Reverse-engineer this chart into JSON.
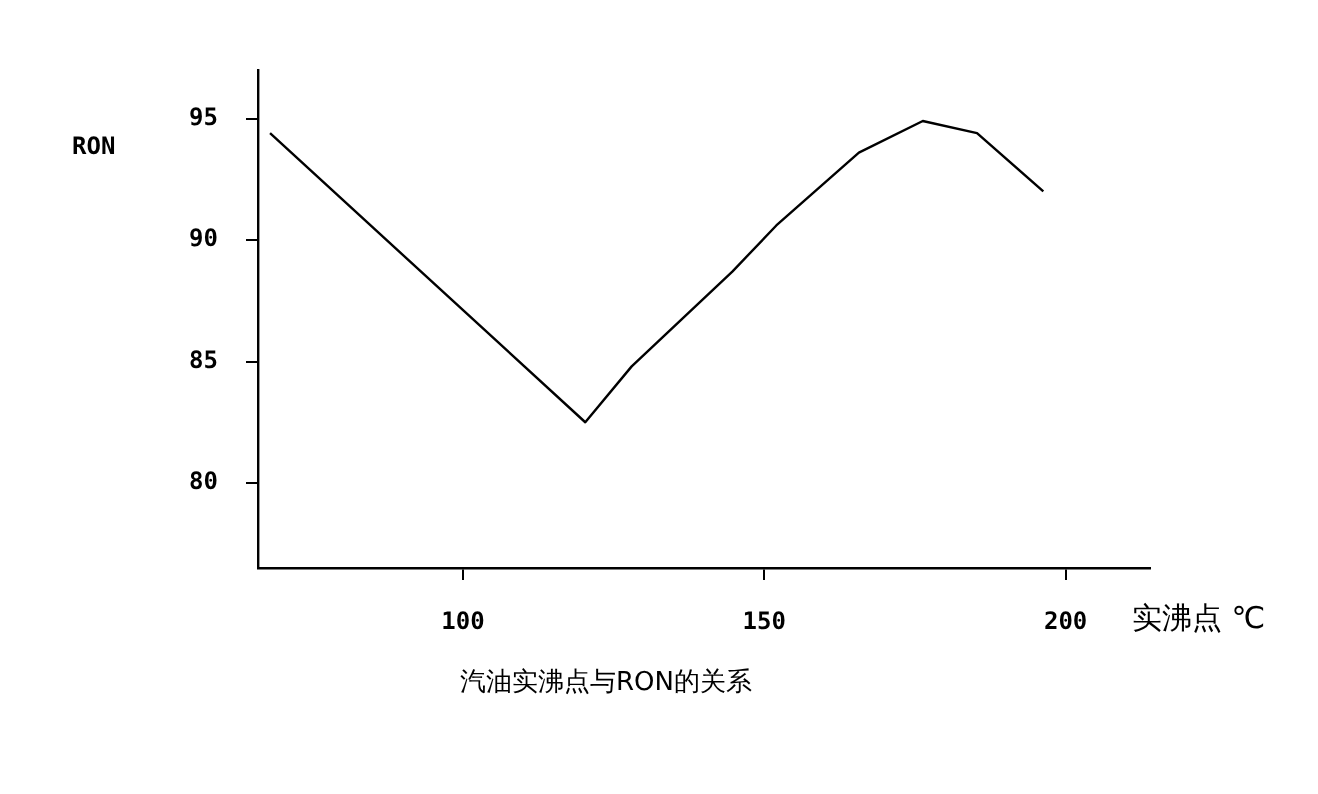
{
  "chart_data": {
    "type": "line",
    "title": "汽油实沸点与RON的关系",
    "xlabel": "实沸点  ℃",
    "ylabel": "RON",
    "x": [
      68,
      120.3,
      128,
      144.7,
      152,
      165.7,
      176.3,
      185.3,
      196.3
    ],
    "series": [
      {
        "color": "#000000",
        "values": [
          94.4,
          82.5,
          84.8,
          88.7,
          90.6,
          93.6,
          94.9,
          94.4,
          92.0
        ]
      }
    ],
    "xlim": [
      66,
      214
    ],
    "xticks": [
      100,
      150,
      200
    ],
    "ylim": [
      76.5,
      97
    ],
    "yticks": [
      80,
      85,
      90,
      95
    ],
    "grid": false,
    "legend": false,
    "marker": "none",
    "line_style": "solid"
  }
}
